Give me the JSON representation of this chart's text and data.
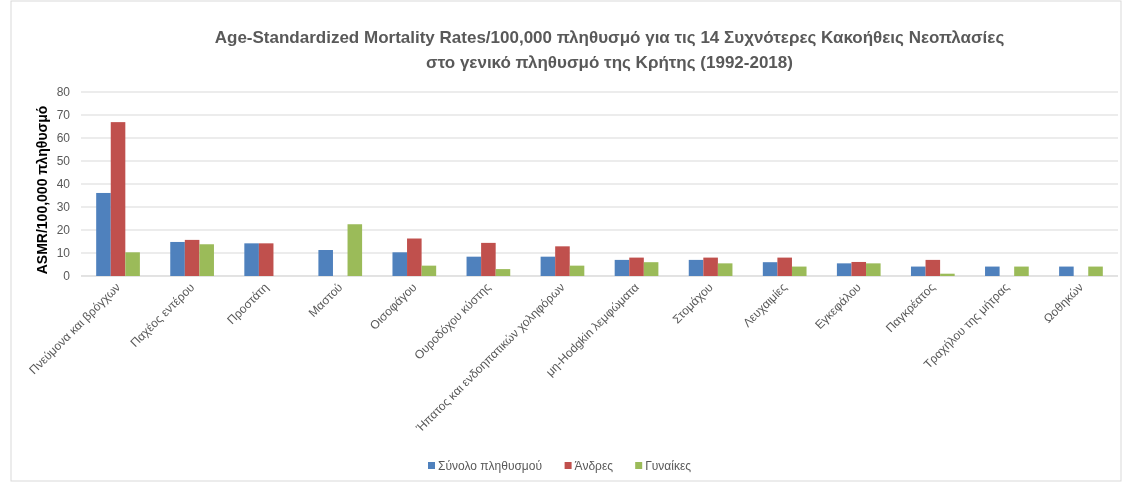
{
  "chart_data": {
    "type": "bar",
    "title": "Age-Standardized Mortality Rates/100,000 πληθυσμό για τις 14 Συχνότερες Κακοήθεις Νεοπλασίες\nστο γενικό πληθυσμό της Κρήτης (1992-2018)",
    "ylabel": "ASMR/100,000 πληθυσμό",
    "categories": [
      "Πνεύμονα και βρόγχων",
      "Παχέος εντέρου",
      "Προστάτη",
      "Μαστού",
      "Οισοφάγου",
      "Ουροδόχου κύστης",
      "Ήπατος και ενδοηπατικών χοληφόρων",
      "μη-Hodgkin λεμφώματα",
      "Στομάχου",
      "Λευχαιμίες",
      "Εγκεφάλου",
      "Παγκρέατος",
      "Τραχήλου της μήτρας",
      "Ωοθηκών"
    ],
    "series": [
      {
        "name": "Σύνολο πληθυσμού",
        "color": "#4f81bd",
        "values": [
          36.1,
          14.8,
          14.2,
          11.3,
          10.3,
          8.4,
          8.4,
          7.0,
          7.0,
          6.0,
          5.5,
          4.1,
          4.1,
          4.1
        ]
      },
      {
        "name": "Άνδρες",
        "color": "#c0504d",
        "values": [
          66.9,
          15.7,
          14.2,
          null,
          16.3,
          14.4,
          12.9,
          8.0,
          8.0,
          8.0,
          6.1,
          7.0,
          null,
          null
        ]
      },
      {
        "name": "Γυναίκες",
        "color": "#9bbb59",
        "values": [
          10.3,
          13.8,
          null,
          22.5,
          4.5,
          3.0,
          4.5,
          6.0,
          5.5,
          4.1,
          5.5,
          1.0,
          4.1,
          4.1
        ]
      }
    ],
    "ylim": [
      0,
      80
    ],
    "yticks": [
      0,
      10,
      20,
      30,
      40,
      50,
      60,
      70,
      80
    ],
    "grid": "y",
    "legend": "bottom"
  }
}
